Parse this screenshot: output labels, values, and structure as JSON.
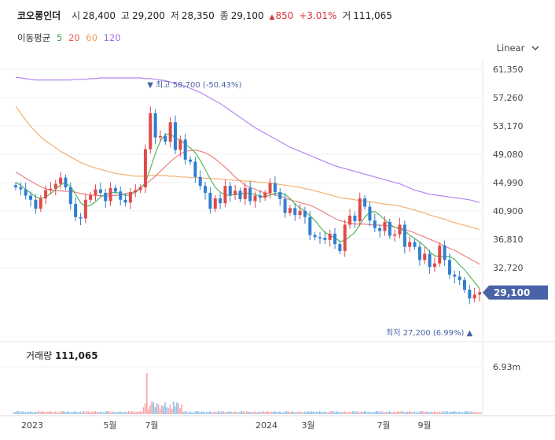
{
  "header": {
    "name": "코오롱인더",
    "open_label": "시",
    "open": "28,400",
    "high_label": "고",
    "high": "29,200",
    "low_label": "저",
    "low": "28,350",
    "close_label": "종",
    "close": "29,100",
    "change_arrow": "▲",
    "change": "850",
    "change_pct": "+3.01%",
    "volume_label": "거",
    "volume": "111,065"
  },
  "ma_legend": {
    "label": "이동평균",
    "items": [
      {
        "text": "5",
        "color": "#3aa845"
      },
      {
        "text": "20",
        "color": "#e55a5a"
      },
      {
        "text": "60",
        "color": "#f0a05a"
      },
      {
        "text": "120",
        "color": "#a06ee0"
      }
    ]
  },
  "scale_toggle": {
    "label": "Linear"
  },
  "colors": {
    "up": "#e04a4a",
    "down": "#2f7fd0",
    "vol_up": "#f4a4a8",
    "vol_down": "#8fbfe8",
    "badge": "#4a63a8",
    "grid": "#eef0f3"
  },
  "chart_data": {
    "type": "candlestick",
    "ylim": [
      25310,
      61350
    ],
    "y_ticks": [
      "61,350",
      "57,260",
      "53,170",
      "49,080",
      "44,990",
      "40,900",
      "36,810",
      "32,720"
    ],
    "x_ticks": [
      "2023",
      "5월",
      "7월",
      "2024",
      "3월",
      "7월",
      "9월"
    ],
    "last_price_badge": "29,100",
    "max_annotation": {
      "arrow": "▼",
      "label": "최고",
      "value": "58,700 (-50.43%)"
    },
    "min_annotation": {
      "arrow": "▲",
      "label": "최저",
      "value": "27,200 (6.99%)"
    },
    "volume_label": "거래량",
    "volume_value": "111,065",
    "volume_axis_label": "6.93m",
    "volume_axis_max": 6930000,
    "weekly_close": [
      44300,
      44000,
      43100,
      42500,
      41200,
      42700,
      43900,
      44100,
      44800,
      45700,
      44300,
      41900,
      40000,
      39800,
      42500,
      43200,
      44000,
      43500,
      42300,
      44200,
      43700,
      42500,
      42100,
      43600,
      43900,
      44300,
      49800,
      55000,
      51500,
      51700,
      50900,
      53700,
      49700,
      51200,
      48300,
      48000,
      45800,
      44500,
      43500,
      41200,
      42700,
      42000,
      44500,
      43200,
      43800,
      42600,
      44200,
      42300,
      43100,
      42800,
      43500,
      44900,
      43600,
      42600,
      40600,
      41300,
      40300,
      40900,
      40000,
      37400,
      37100,
      37000,
      36700,
      37600,
      36100,
      35100,
      38900,
      40200,
      39400,
      42700,
      41500,
      39500,
      38400,
      38000,
      39300,
      37300,
      37500,
      38900,
      35700,
      36400,
      35700,
      33800,
      34700,
      32800,
      33300,
      35900,
      33800,
      31700,
      31400,
      30900,
      29500,
      28250,
      28800,
      29100
    ],
    "ma5": [
      45000,
      44600,
      44000,
      43500,
      42900,
      42700,
      42900,
      43400,
      44000,
      44700,
      44900,
      44400,
      43300,
      42100,
      41500,
      41700,
      42200,
      42900,
      43300,
      43500,
      43600,
      43400,
      43100,
      43200,
      43600,
      44100,
      45000,
      47000,
      49200,
      51000,
      51900,
      52000,
      51400,
      51100,
      50500,
      50000,
      49300,
      48200,
      46900,
      45500,
      44300,
      43600,
      43200,
      43100,
      43300,
      43300,
      43500,
      43400,
      43300,
      43000,
      42900,
      43200,
      43400,
      43500,
      43300,
      42700,
      41900,
      41300,
      40800,
      40200,
      39500,
      38600,
      37800,
      37300,
      37000,
      36500,
      36600,
      37200,
      37800,
      38900,
      40000,
      40700,
      40800,
      40300,
      39600,
      39000,
      38500,
      38300,
      38000,
      37400,
      36900,
      36400,
      35800,
      35000,
      34400,
      34300,
      34300,
      34300,
      33900,
      33100,
      32400,
      31500,
      30600,
      29700
    ],
    "ma20": [
      46500,
      46100,
      45600,
      45200,
      44800,
      44400,
      44100,
      43900,
      43800,
      43800,
      43700,
      43700,
      43600,
      43400,
      43300,
      43200,
      43100,
      43100,
      43000,
      43100,
      43100,
      43200,
      43400,
      43500,
      43700,
      44200,
      44700,
      45300,
      45900,
      46600,
      47300,
      48000,
      48600,
      49100,
      49500,
      49600,
      49700,
      49500,
      49300,
      48900,
      48400,
      47800,
      47200,
      46500,
      45800,
      45200,
      44600,
      44300,
      44000,
      43700,
      43500,
      43400,
      43200,
      43000,
      42800,
      42500,
      42300,
      42100,
      41900,
      41700,
      41400,
      41000,
      40600,
      40200,
      39800,
      39500,
      39300,
      39100,
      39000,
      39000,
      39000,
      38900,
      38900,
      38800,
      38800,
      38700,
      38500,
      38400,
      38200,
      38000,
      37700,
      37400,
      37100,
      36800,
      36500,
      36200,
      35800,
      35500,
      35200,
      34800,
      34400,
      34000,
      33600,
      33200
    ],
    "ma60": [
      56000,
      55000,
      54000,
      53100,
      52300,
      51600,
      51000,
      50500,
      50000,
      49500,
      49100,
      48700,
      48300,
      47900,
      47600,
      47300,
      47100,
      46900,
      46700,
      46500,
      46300,
      46200,
      46100,
      46000,
      45900,
      45900,
      45900,
      46000,
      46000,
      46000,
      46000,
      45900,
      45900,
      45800,
      45800,
      45700,
      45700,
      45700,
      45600,
      45600,
      45500,
      45500,
      45400,
      45400,
      45300,
      45300,
      45200,
      45200,
      45100,
      45000,
      45000,
      44900,
      44800,
      44700,
      44600,
      44500,
      44400,
      44300,
      44100,
      44000,
      43800,
      43600,
      43400,
      43200,
      43000,
      42800,
      42700,
      42600,
      42500,
      42400,
      42300,
      42200,
      42100,
      42000,
      41900,
      41800,
      41700,
      41600,
      41400,
      41200,
      41000,
      40800,
      40600,
      40300,
      40100,
      39900,
      39700,
      39400,
      39200,
      39000,
      38800,
      38600,
      38400,
      38200
    ],
    "ma120": [
      60200,
      60100,
      60000,
      59900,
      59800,
      59800,
      59800,
      59800,
      59800,
      59800,
      59800,
      59800,
      59900,
      59900,
      59900,
      60000,
      60000,
      60100,
      60100,
      60100,
      60100,
      60100,
      60100,
      60100,
      60100,
      60100,
      60000,
      60000,
      59900,
      59800,
      59700,
      59500,
      59300,
      59100,
      58900,
      58600,
      58300,
      58000,
      57600,
      57200,
      56800,
      56400,
      55900,
      55400,
      54900,
      54400,
      53900,
      53400,
      52900,
      52500,
      52100,
      51700,
      51300,
      50900,
      50500,
      50100,
      49800,
      49500,
      49200,
      48900,
      48600,
      48300,
      48000,
      47700,
      47400,
      47200,
      47000,
      46800,
      46600,
      46400,
      46200,
      46000,
      45800,
      45600,
      45400,
      45200,
      45000,
      44800,
      44500,
      44200,
      43900,
      43700,
      43500,
      43300,
      43200,
      43100,
      43000,
      42900,
      42800,
      42700,
      42600,
      42500,
      42300,
      42100
    ]
  }
}
